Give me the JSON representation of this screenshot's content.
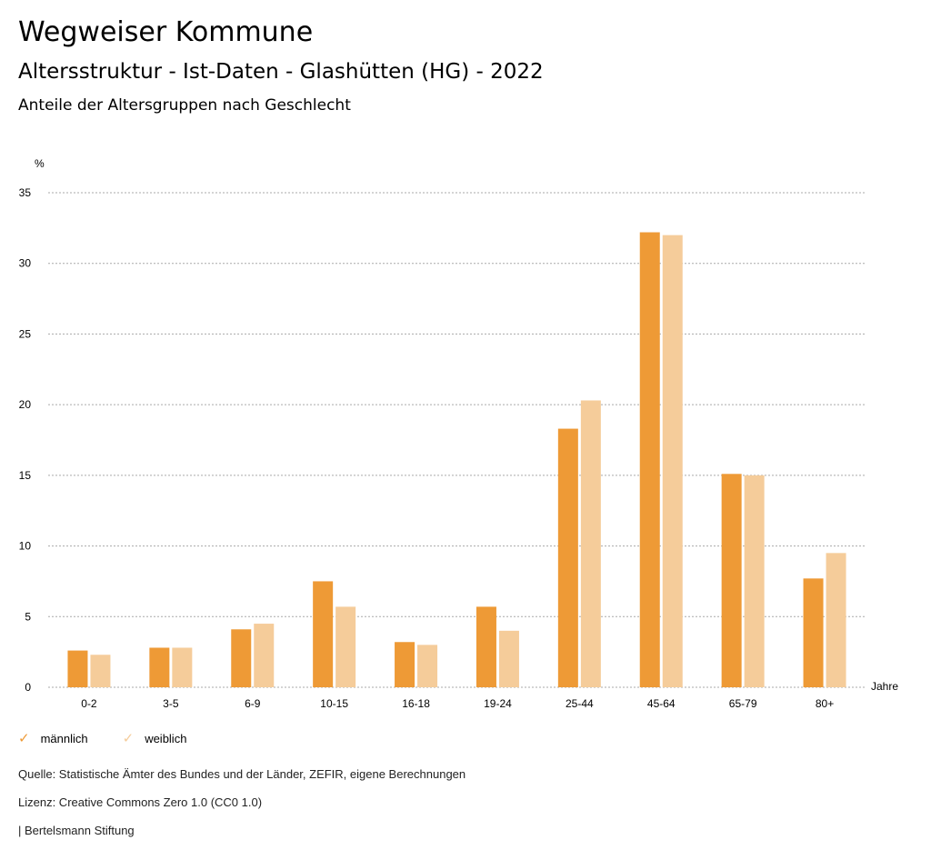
{
  "header": {
    "title": "Wegweiser Kommune",
    "subtitle": "Altersstruktur - Ist-Daten - Glashütten (HG) - 2022",
    "chart_title": "Anteile der Altersgruppen nach Geschlecht"
  },
  "chart_data": {
    "type": "bar",
    "title": "Anteile der Altersgruppen nach Geschlecht",
    "ylabel": "%",
    "xlabel": "Jahre",
    "ylim": [
      0,
      35
    ],
    "yticks": [
      0,
      5,
      10,
      15,
      20,
      25,
      30,
      35
    ],
    "categories": [
      "0-2",
      "3-5",
      "6-9",
      "10-15",
      "16-18",
      "19-24",
      "25-44",
      "45-64",
      "65-79",
      "80+"
    ],
    "series": [
      {
        "name": "männlich",
        "color": "#EE9A36",
        "values": [
          2.6,
          2.8,
          4.1,
          7.5,
          3.2,
          5.7,
          18.3,
          32.2,
          15.1,
          7.7
        ]
      },
      {
        "name": "weiblich",
        "color": "#F5CC9A",
        "values": [
          2.3,
          2.8,
          4.5,
          5.7,
          3.0,
          4.0,
          20.3,
          32.0,
          15.0,
          9.5
        ]
      }
    ],
    "grid": true,
    "legend": "bottom-left"
  },
  "footer": {
    "source": "Quelle: Statistische Ämter des Bundes und der Länder, ZEFIR, eigene Berechnungen",
    "license": "Lizenz: Creative Commons Zero 1.0 (CC0 1.0)",
    "brand": "| Bertelsmann Stiftung"
  }
}
